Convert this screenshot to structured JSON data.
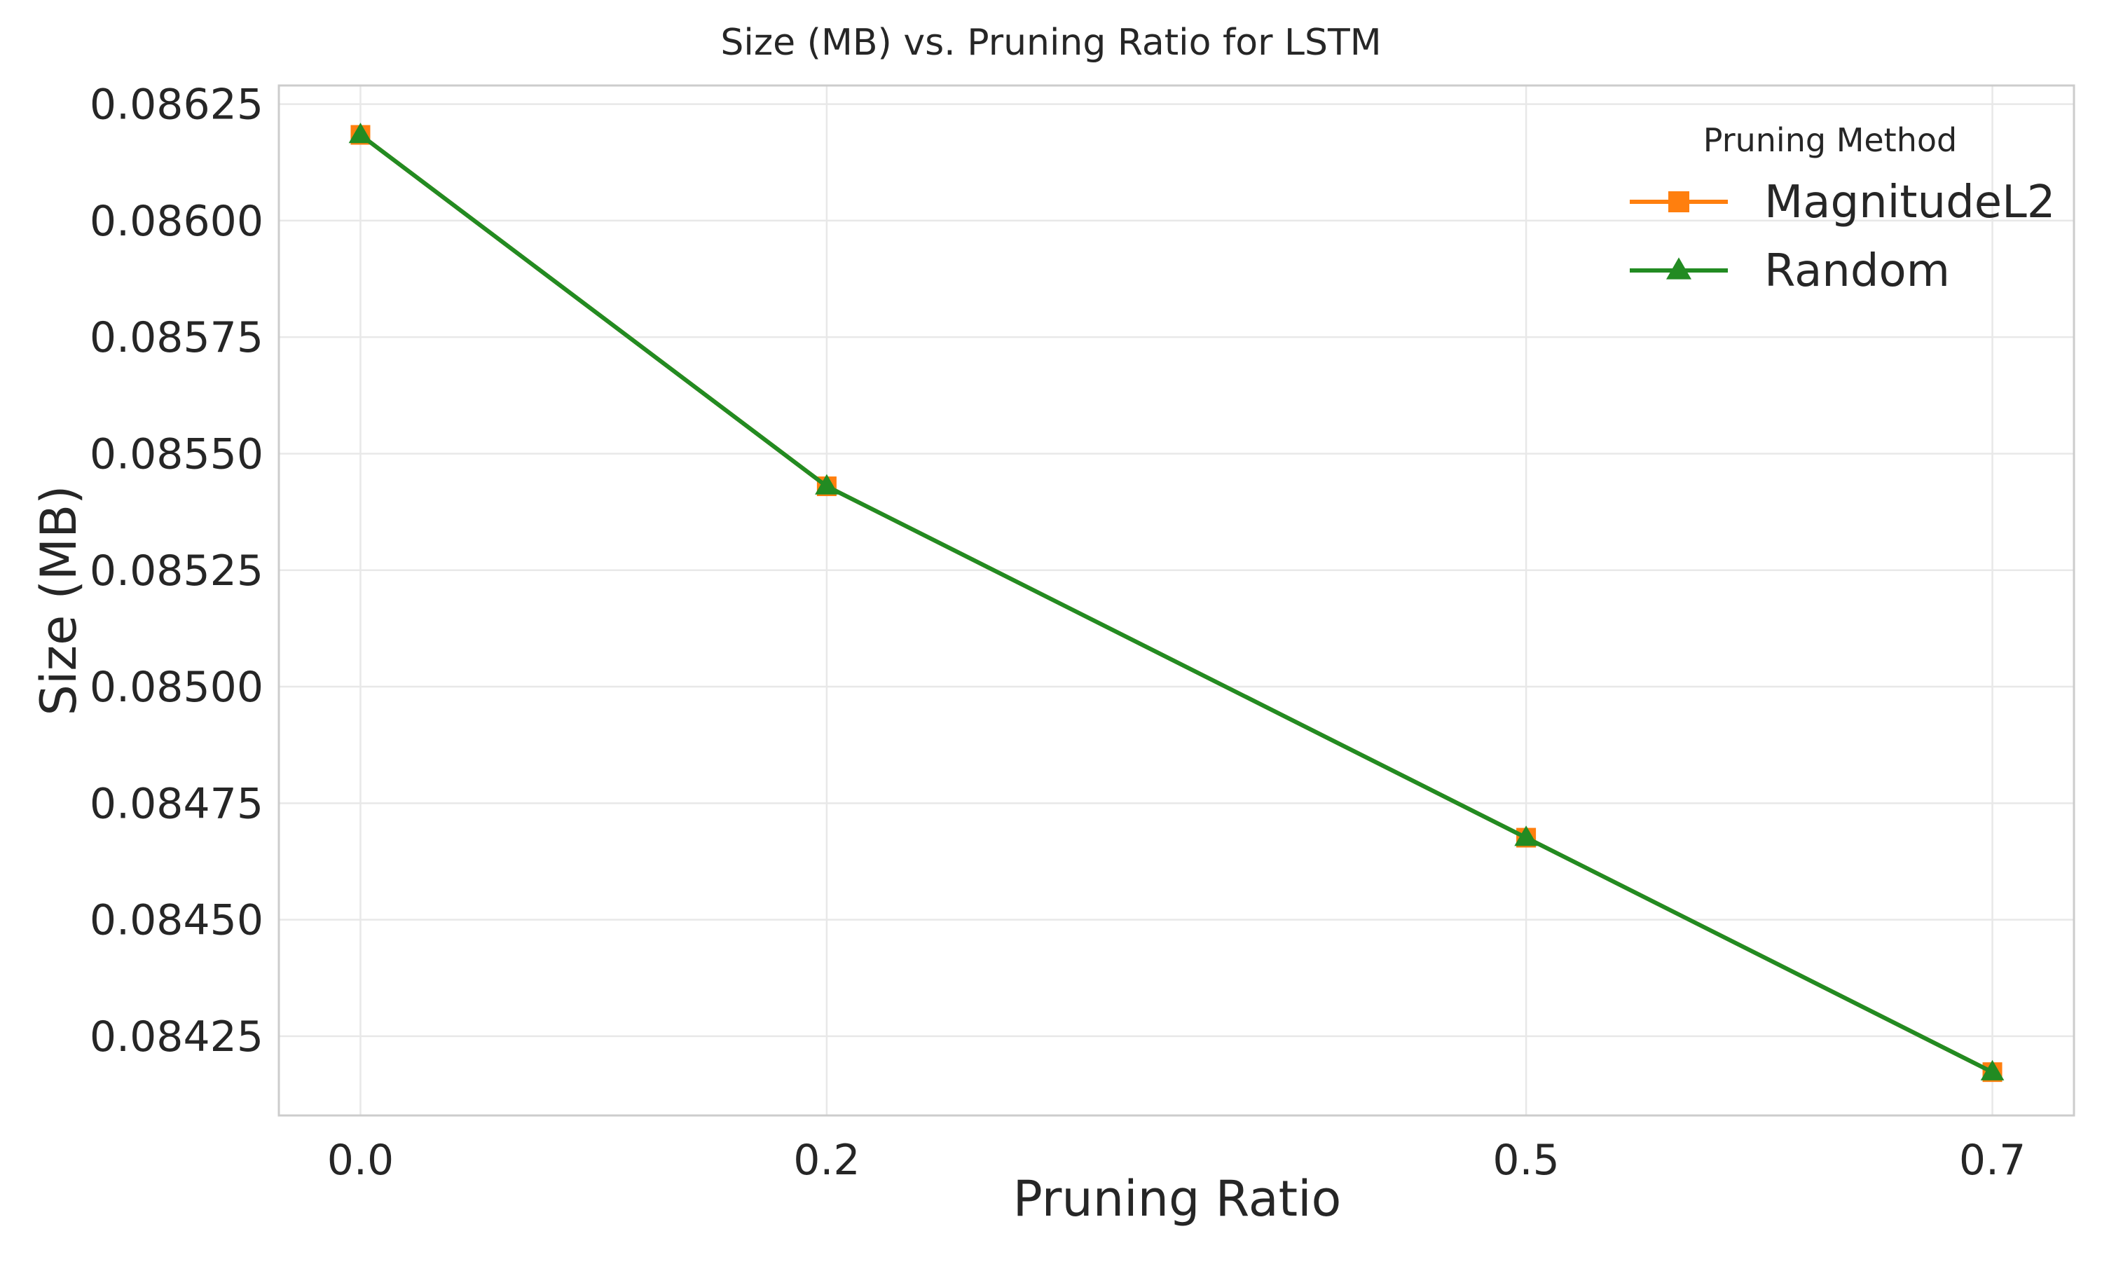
{
  "chart_data": {
    "type": "line",
    "title": "Size (MB) vs. Pruning Ratio for LSTM",
    "xlabel": "Pruning Ratio",
    "ylabel": "Size (MB)",
    "x": [
      0.0,
      0.2,
      0.5,
      0.7
    ],
    "x_tick_labels": [
      "0.0",
      "0.2",
      "0.5",
      "0.7"
    ],
    "xlim": [
      -0.035,
      0.735
    ],
    "ylim": [
      0.08408,
      0.08629
    ],
    "y_ticks": [
      0.08425,
      0.0845,
      0.08475,
      0.085,
      0.08525,
      0.0855,
      0.08575,
      0.086,
      0.08625
    ],
    "y_tick_labels": [
      "0.08425",
      "0.08450",
      "0.08475",
      "0.08500",
      "0.08525",
      "0.08550",
      "0.08575",
      "0.08600",
      "0.08625"
    ],
    "grid": true,
    "legend_title": "Pruning Method",
    "legend_position": "top-right",
    "series": [
      {
        "name": "MagnitudeL2",
        "color": "#ff7f0e",
        "marker": "square",
        "values": [
          0.086184,
          0.08543,
          0.084676,
          0.084173
        ]
      },
      {
        "name": "Random",
        "color": "#228b22",
        "marker": "triangle",
        "values": [
          0.086184,
          0.08543,
          0.084676,
          0.084173
        ]
      }
    ]
  }
}
